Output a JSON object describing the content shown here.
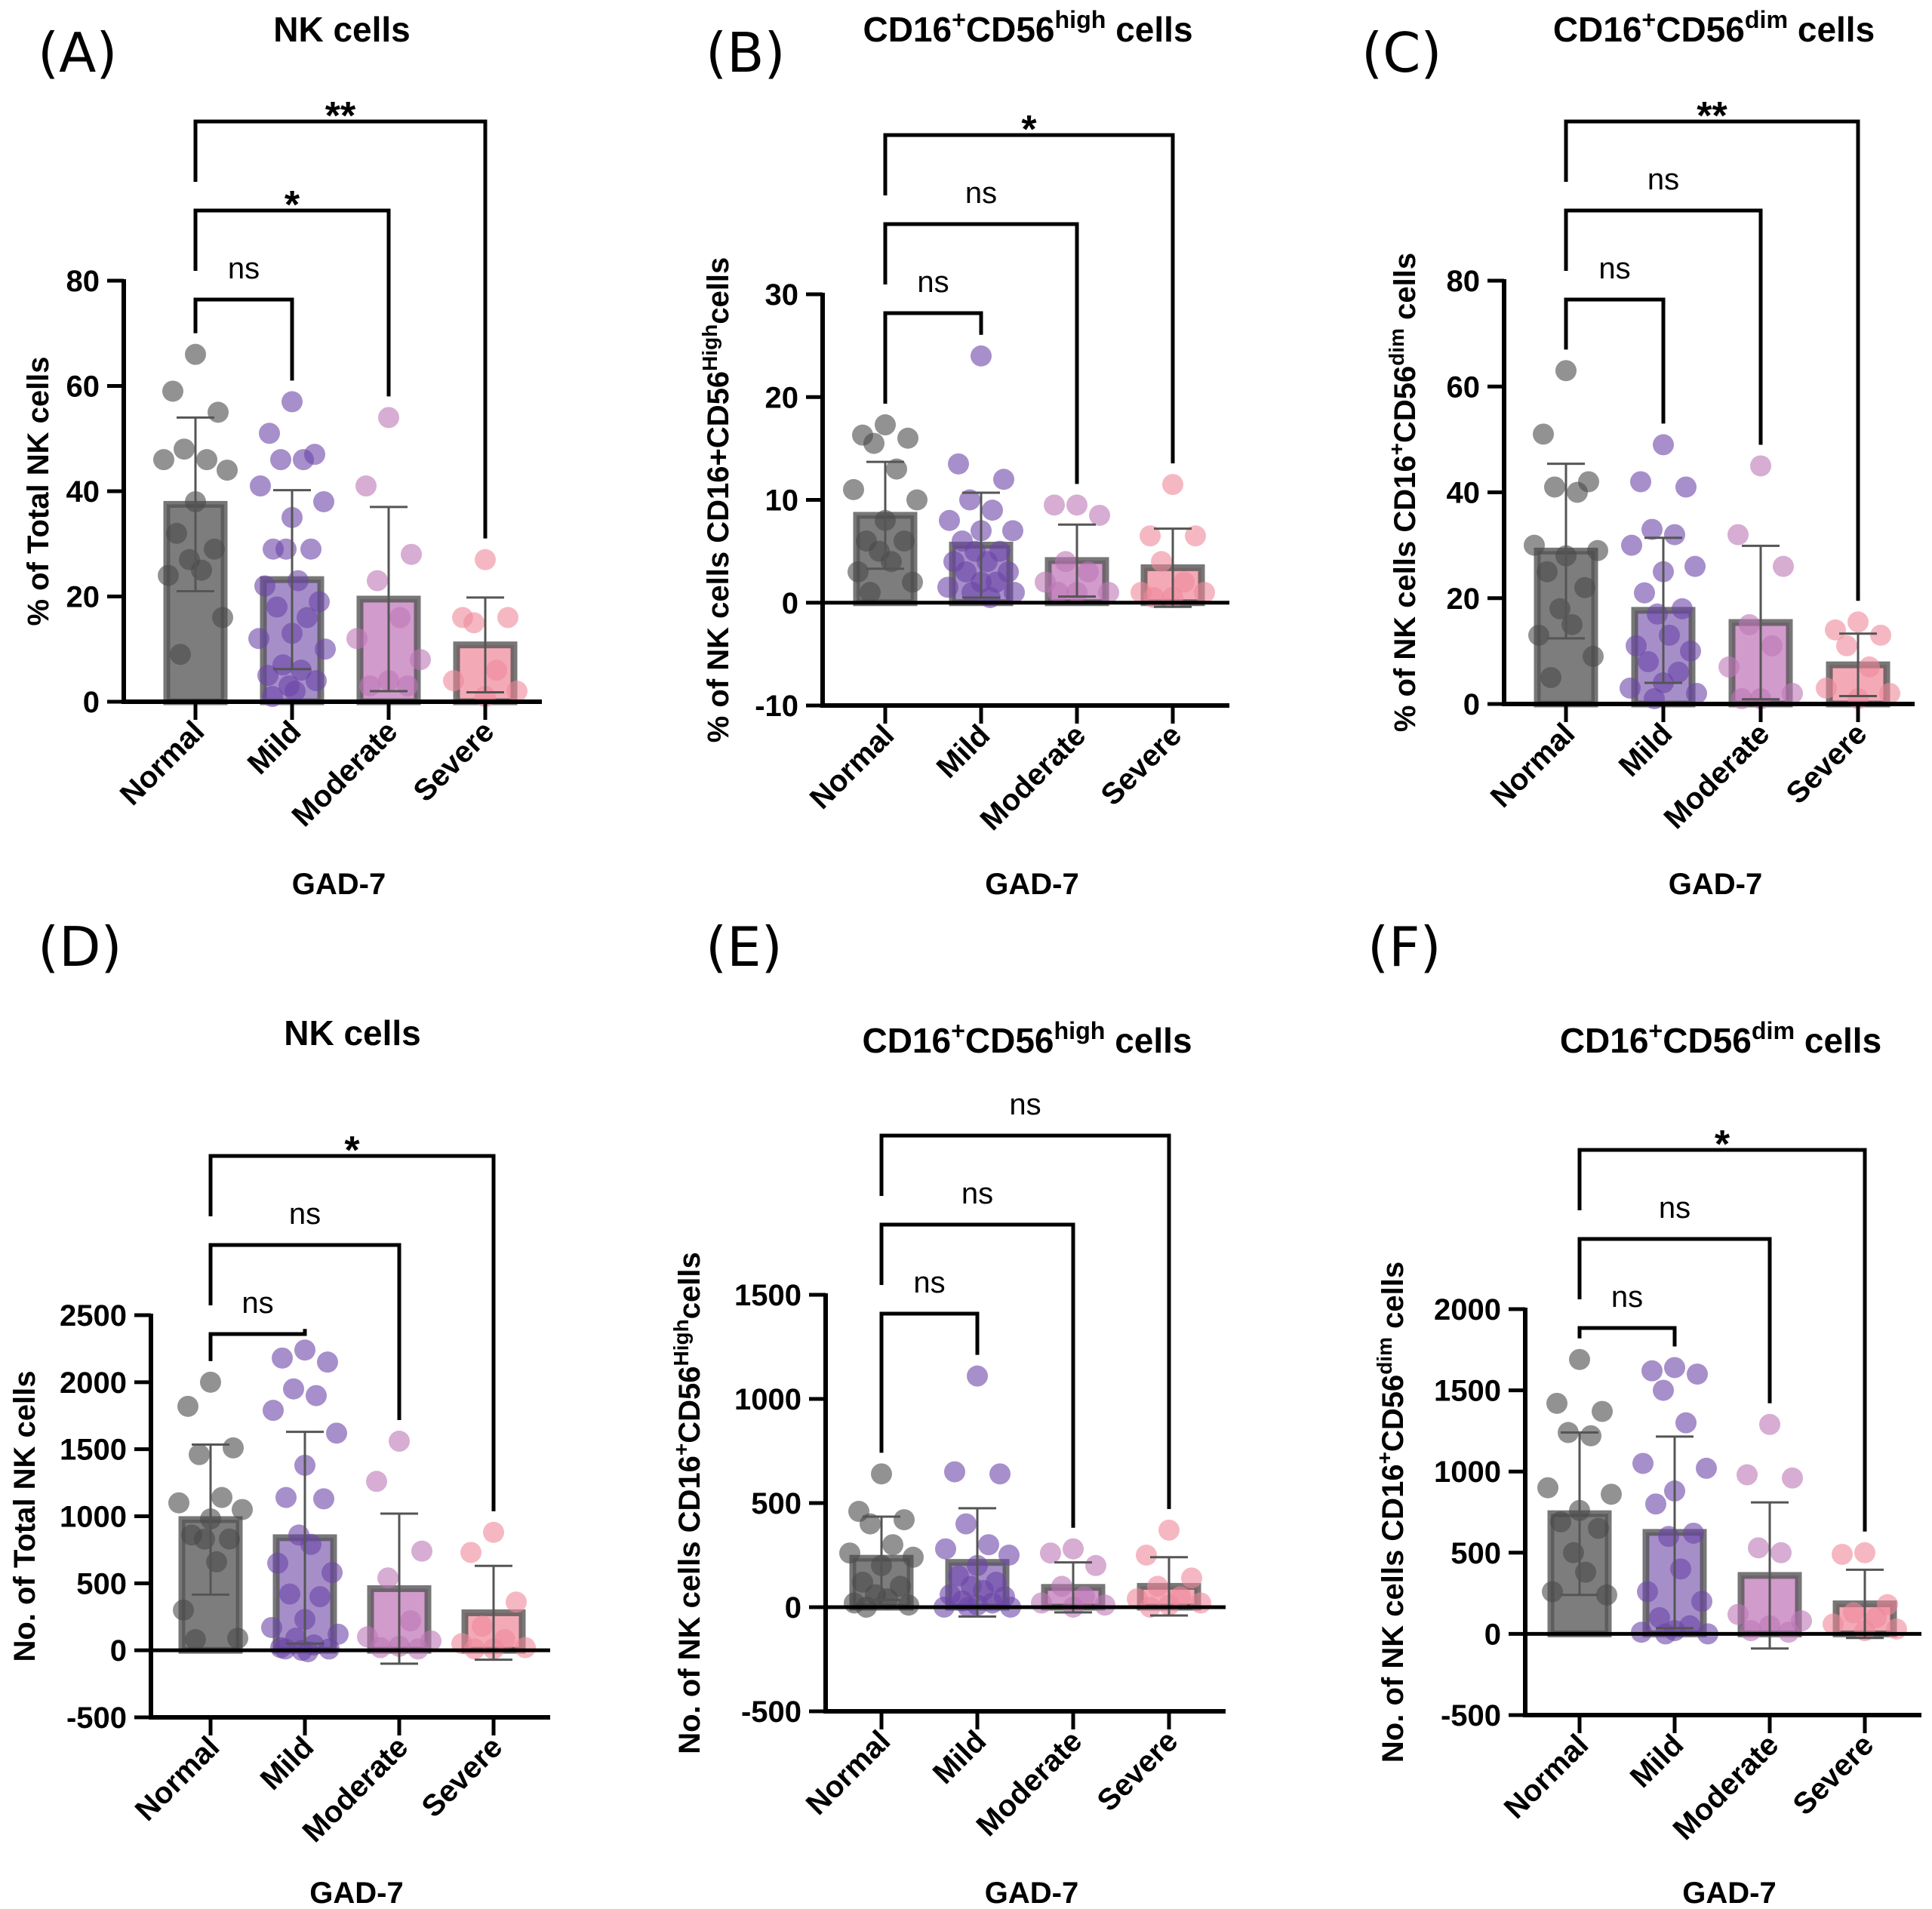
{
  "group_colors": {
    "Normal": {
      "bar": "#7d7d7d",
      "dot": "#4a4a4a"
    },
    "Mild": {
      "bar": "#a68fc9",
      "dot": "#6a45a6"
    },
    "Moderate": {
      "bar": "#d19bcb",
      "dot": "#bd77b5"
    },
    "Severe": {
      "bar": "#f4aab6",
      "dot": "#ee899b"
    }
  },
  "chart_data": [
    {
      "type": "bar",
      "panel": "(A)",
      "title": [
        {
          "t": "NK cells"
        }
      ],
      "ylabel": [
        {
          "t": "% of Total NK cells"
        }
      ],
      "xlabel": "GAD-7",
      "categories": [
        "Normal",
        "Mild",
        "Moderate",
        "Severe"
      ],
      "ylim": [
        0,
        80
      ],
      "yticks": [
        0,
        20,
        40,
        60,
        80
      ],
      "means": [
        37.5,
        23.2,
        19.5,
        10.8
      ],
      "sd": [
        16.5,
        17.0,
        17.5,
        9.0
      ],
      "points": [
        [
          66,
          59,
          55,
          48,
          46,
          46,
          44,
          38,
          32,
          29,
          27,
          25,
          24,
          16,
          9
        ],
        [
          57,
          51,
          47,
          46,
          46,
          41,
          38,
          35,
          29,
          29,
          29,
          23,
          22,
          19,
          18,
          16,
          13,
          12,
          10,
          7,
          6,
          5,
          4,
          3,
          2,
          1
        ],
        [
          54,
          41,
          28,
          23,
          16,
          12,
          8,
          4,
          3,
          3
        ],
        [
          27,
          16,
          16,
          15,
          6,
          4,
          2,
          1
        ]
      ],
      "comparisons": [
        {
          "pair": [
            "Normal",
            "Mild"
          ],
          "label": "ns"
        },
        {
          "pair": [
            "Normal",
            "Moderate"
          ],
          "label": "*"
        },
        {
          "pair": [
            "Normal",
            "Severe"
          ],
          "label": "**"
        }
      ]
    },
    {
      "type": "bar",
      "panel": "(B)",
      "title": [
        {
          "t": "CD16"
        },
        {
          "t": "+",
          "sup": true
        },
        {
          "t": "CD56"
        },
        {
          "t": "high",
          "sup": true
        },
        {
          "t": " cells"
        }
      ],
      "ylabel": [
        {
          "t": "% of NK cells CD16+CD56"
        },
        {
          "t": "High",
          "sup": true
        },
        {
          "t": "cells"
        }
      ],
      "xlabel": "GAD-7",
      "categories": [
        "Normal",
        "Mild",
        "Moderate",
        "Severe"
      ],
      "ylim": [
        -10,
        30
      ],
      "yticks": [
        -10,
        0,
        10,
        20,
        30
      ],
      "means": [
        8.5,
        5.6,
        4.1,
        3.4
      ],
      "sd": [
        5.2,
        5.1,
        3.5,
        3.8
      ],
      "points": [
        [
          17.3,
          16.3,
          16,
          15.5,
          13,
          11,
          10,
          8,
          6,
          6,
          5,
          4,
          3,
          2,
          1
        ],
        [
          24,
          13.5,
          12,
          10,
          9,
          8,
          7,
          7,
          6,
          5,
          5,
          4,
          4,
          3,
          3,
          2,
          2,
          1.5,
          1,
          1,
          0.5
        ],
        [
          9.5,
          9.5,
          8.5,
          4,
          3,
          2,
          1,
          1,
          1
        ],
        [
          11.5,
          6.5,
          6.5,
          4,
          2,
          1,
          1,
          0.5,
          0.5
        ]
      ],
      "comparisons": [
        {
          "pair": [
            "Normal",
            "Mild"
          ],
          "label": "ns"
        },
        {
          "pair": [
            "Normal",
            "Moderate"
          ],
          "label": "ns"
        },
        {
          "pair": [
            "Normal",
            "Severe"
          ],
          "label": "*"
        }
      ]
    },
    {
      "type": "bar",
      "panel": "(C)",
      "title": [
        {
          "t": "CD16"
        },
        {
          "t": "+",
          "sup": true
        },
        {
          "t": "CD56"
        },
        {
          "t": "dim",
          "sup": true
        },
        {
          "t": " cells"
        }
      ],
      "ylabel": [
        {
          "t": "% of NK cells CD16"
        },
        {
          "t": "+",
          "sup": true
        },
        {
          "t": "CD56"
        },
        {
          "t": "dim",
          "sup": true
        },
        {
          "t": " cells"
        }
      ],
      "xlabel": "GAD-7",
      "categories": [
        "Normal",
        "Mild",
        "Moderate",
        "Severe"
      ],
      "ylim": [
        0,
        80
      ],
      "yticks": [
        0,
        20,
        40,
        60,
        80
      ],
      "means": [
        28.9,
        17.7,
        15.4,
        7.4
      ],
      "sd": [
        16.5,
        13.7,
        14.5,
        5.9
      ],
      "points": [
        [
          63,
          51,
          42,
          41,
          40,
          30,
          29,
          28,
          25,
          22,
          18,
          15,
          13,
          9,
          5
        ],
        [
          49,
          42,
          41,
          33,
          32,
          30,
          26,
          25,
          21,
          18,
          17,
          13,
          11,
          10,
          8,
          6,
          4,
          3,
          2,
          1
        ],
        [
          45,
          32,
          26,
          15,
          11,
          7,
          2,
          1,
          1
        ],
        [
          15.5,
          14,
          13,
          11,
          7,
          3,
          2,
          1
        ]
      ],
      "comparisons": [
        {
          "pair": [
            "Normal",
            "Mild"
          ],
          "label": "ns"
        },
        {
          "pair": [
            "Normal",
            "Moderate"
          ],
          "label": "ns"
        },
        {
          "pair": [
            "Normal",
            "Severe"
          ],
          "label": "**"
        }
      ]
    },
    {
      "type": "bar",
      "panel": "(D)",
      "title": [
        {
          "t": "NK cells"
        }
      ],
      "ylabel": [
        {
          "t": "No. of Total NK cells"
        }
      ],
      "xlabel": "GAD-7",
      "categories": [
        "Normal",
        "Mild",
        "Moderate",
        "Severe"
      ],
      "ylim": [
        -500,
        2500
      ],
      "yticks": [
        -500,
        0,
        500,
        1000,
        1500,
        2000,
        2500
      ],
      "means": [
        975,
        840,
        460,
        280
      ],
      "sd": [
        560,
        790,
        560,
        350
      ],
      "points": [
        [
          2000,
          1820,
          1510,
          1460,
          1140,
          1100,
          1050,
          980,
          860,
          830,
          830,
          660,
          300,
          90,
          80
        ],
        [
          2240,
          2180,
          2150,
          1950,
          1900,
          1790,
          1620,
          1380,
          1140,
          1130,
          860,
          790,
          650,
          580,
          420,
          400,
          230,
          170,
          120,
          90,
          40,
          20,
          10,
          0,
          -10,
          10
        ],
        [
          1560,
          1260,
          740,
          540,
          220,
          100,
          70,
          30,
          20,
          10
        ],
        [
          880,
          730,
          360,
          180,
          80,
          50,
          20,
          10,
          10
        ]
      ],
      "comparisons": [
        {
          "pair": [
            "Normal",
            "Mild"
          ],
          "label": "ns"
        },
        {
          "pair": [
            "Normal",
            "Moderate"
          ],
          "label": "ns"
        },
        {
          "pair": [
            "Normal",
            "Severe"
          ],
          "label": "*"
        }
      ]
    },
    {
      "type": "bar",
      "panel": "(E)",
      "title": [
        {
          "t": "CD16"
        },
        {
          "t": "+",
          "sup": true
        },
        {
          "t": "CD56"
        },
        {
          "t": "high",
          "sup": true
        },
        {
          "t": " cells"
        }
      ],
      "ylabel": [
        {
          "t": "No. of NK cells CD16"
        },
        {
          "t": "+",
          "sup": true
        },
        {
          "t": "CD56"
        },
        {
          "t": "High",
          "sup": true
        },
        {
          "t": "cells"
        }
      ],
      "xlabel": "GAD-7",
      "categories": [
        "Normal",
        "Mild",
        "Moderate",
        "Severe"
      ],
      "ylim": [
        -500,
        1500
      ],
      "yticks": [
        -500,
        0,
        500,
        1000,
        1500
      ],
      "means": [
        235,
        215,
        95,
        100
      ],
      "sd": [
        200,
        260,
        120,
        140
      ],
      "points": [
        [
          640,
          460,
          420,
          400,
          300,
          260,
          240,
          200,
          120,
          100,
          60,
          40,
          20,
          10,
          0
        ],
        [
          1110,
          650,
          640,
          400,
          300,
          280,
          250,
          200,
          150,
          120,
          100,
          80,
          60,
          50,
          30,
          20,
          10,
          0,
          0,
          0
        ],
        [
          280,
          260,
          200,
          100,
          50,
          20,
          10,
          0
        ],
        [
          370,
          250,
          140,
          100,
          50,
          40,
          20,
          10,
          0
        ]
      ],
      "comparisons": [
        {
          "pair": [
            "Normal",
            "Mild"
          ],
          "label": "ns"
        },
        {
          "pair": [
            "Normal",
            "Moderate"
          ],
          "label": "ns"
        },
        {
          "pair": [
            "Normal",
            "Severe"
          ],
          "label": "ns"
        }
      ]
    },
    {
      "type": "bar",
      "panel": "(F)",
      "title": [
        {
          "t": "CD16"
        },
        {
          "t": "+",
          "sup": true
        },
        {
          "t": "CD56"
        },
        {
          "t": "dim",
          "sup": true
        },
        {
          "t": " cells"
        }
      ],
      "ylabel": [
        {
          "t": "No. of NK cells CD16"
        },
        {
          "t": "+",
          "sup": true
        },
        {
          "t": "CD56"
        },
        {
          "t": "dim",
          "sup": true
        },
        {
          "t": " cells"
        }
      ],
      "xlabel": "GAD-7",
      "categories": [
        "Normal",
        "Mild",
        "Moderate",
        "Severe"
      ],
      "ylim": [
        -500,
        2000
      ],
      "yticks": [
        -500,
        0,
        500,
        1000,
        1500,
        2000
      ],
      "means": [
        740,
        625,
        360,
        185
      ],
      "sd": [
        500,
        590,
        450,
        210
      ],
      "points": [
        [
          1690,
          1420,
          1370,
          1240,
          1220,
          900,
          860,
          760,
          690,
          650,
          500,
          380,
          260,
          240
        ],
        [
          1640,
          1620,
          1600,
          1500,
          1300,
          1050,
          1020,
          880,
          800,
          620,
          600,
          400,
          260,
          200,
          100,
          50,
          20,
          10,
          0,
          0
        ],
        [
          1290,
          980,
          960,
          530,
          500,
          120,
          80,
          50,
          20,
          10
        ],
        [
          500,
          490,
          180,
          130,
          100,
          60,
          30,
          20
        ]
      ],
      "comparisons": [
        {
          "pair": [
            "Normal",
            "Mild"
          ],
          "label": "ns"
        },
        {
          "pair": [
            "Normal",
            "Moderate"
          ],
          "label": "ns"
        },
        {
          "pair": [
            "Normal",
            "Severe"
          ],
          "label": "*"
        }
      ]
    }
  ]
}
